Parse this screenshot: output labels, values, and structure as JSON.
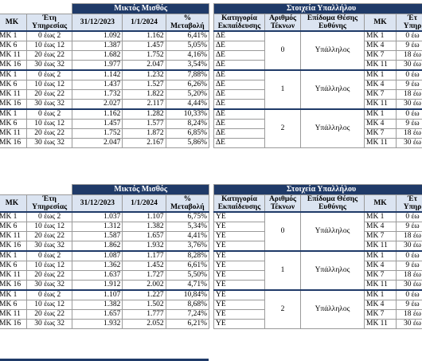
{
  "blocks": [
    {
      "salary_title": "Μικτός Μισθός",
      "staff_title": "Στοιχεία Υπαλλήλου",
      "headers": {
        "mk": "ΜΚ",
        "years": "Έτη Υπηρεσίας",
        "d1": "31/12/2023",
        "d2": "1/1/2024",
        "pct": "% Μεταβολή",
        "edu": "Κατηγορία Εκπαίδευσης",
        "kids": "Αριθμός Τέκνων",
        "allow": "Επίδομα Θέσης Ευθύνης",
        "mk2": "ΜΚ",
        "years2": "Έτ Υπηρ"
      },
      "groups": [
        {
          "kids": "0",
          "allow": "Υπάλληλος",
          "rows": [
            {
              "mk": "ΜΚ 1",
              "years": "0 έως 2",
              "v1": "1.092",
              "v2": "1.162",
              "pct": "6,41%",
              "edu": "ΔΕ",
              "mk2": "ΜΚ 1",
              "y2": "0 έω"
            },
            {
              "mk": "ΜΚ 6",
              "years": "10 έως 12",
              "v1": "1.387",
              "v2": "1.457",
              "pct": "5,05%",
              "edu": "ΔΕ",
              "mk2": "ΜΚ 4",
              "y2": "9 έω"
            },
            {
              "mk": "ΜΚ 11",
              "years": "20 έως 22",
              "v1": "1.682",
              "v2": "1.752",
              "pct": "4,16%",
              "edu": "ΔΕ",
              "mk2": "ΜΚ 7",
              "y2": "18 έω"
            },
            {
              "mk": "ΜΚ 16",
              "years": "30 έως 32",
              "v1": "1.977",
              "v2": "2.047",
              "pct": "3,54%",
              "edu": "ΔΕ",
              "mk2": "ΜΚ 11",
              "y2": "30 έω"
            }
          ]
        },
        {
          "kids": "1",
          "allow": "Υπάλληλος",
          "rows": [
            {
              "mk": "ΜΚ 1",
              "years": "0 έως 2",
              "v1": "1.142",
              "v2": "1.232",
              "pct": "7,88%",
              "edu": "ΔΕ",
              "mk2": "ΜΚ 1",
              "y2": "0 έω"
            },
            {
              "mk": "ΜΚ 6",
              "years": "10 έως 12",
              "v1": "1.437",
              "v2": "1.527",
              "pct": "6,26%",
              "edu": "ΔΕ",
              "mk2": "ΜΚ 4",
              "y2": "9 έω"
            },
            {
              "mk": "ΜΚ 11",
              "years": "20 έως 22",
              "v1": "1.732",
              "v2": "1.822",
              "pct": "5,20%",
              "edu": "ΔΕ",
              "mk2": "ΜΚ 7",
              "y2": "18 έω"
            },
            {
              "mk": "ΜΚ 16",
              "years": "30 έως 32",
              "v1": "2.027",
              "v2": "2.117",
              "pct": "4,44%",
              "edu": "ΔΕ",
              "mk2": "ΜΚ 11",
              "y2": "30 έω"
            }
          ]
        },
        {
          "kids": "2",
          "allow": "Υπάλληλος",
          "rows": [
            {
              "mk": "ΜΚ 1",
              "years": "0 έως 2",
              "v1": "1.162",
              "v2": "1.282",
              "pct": "10,33%",
              "edu": "ΔΕ",
              "mk2": "ΜΚ 1",
              "y2": "0 έω"
            },
            {
              "mk": "ΜΚ 6",
              "years": "10 έως 12",
              "v1": "1.457",
              "v2": "1.577",
              "pct": "8,24%",
              "edu": "ΔΕ",
              "mk2": "ΜΚ 4",
              "y2": "9 έω"
            },
            {
              "mk": "ΜΚ 11",
              "years": "20 έως 22",
              "v1": "1.752",
              "v2": "1.872",
              "pct": "6,85%",
              "edu": "ΔΕ",
              "mk2": "ΜΚ 7",
              "y2": "18 έω"
            },
            {
              "mk": "ΜΚ 16",
              "years": "30 έως 32",
              "v1": "2.047",
              "v2": "2.167",
              "pct": "5,86%",
              "edu": "ΔΕ",
              "mk2": "ΜΚ 11",
              "y2": "30 έω"
            }
          ]
        }
      ]
    },
    {
      "salary_title": "Μικτός Μισθός",
      "staff_title": "Στοιχεία Υπαλλήλου",
      "headers": {
        "mk": "ΜΚ",
        "years": "Έτη Υπηρεσίας",
        "d1": "31/12/2023",
        "d2": "1/1/2024",
        "pct": "% Μεταβολή",
        "edu": "Κατηγορία Εκπαίδευσης",
        "kids": "Αριθμός Τέκνων",
        "allow": "Επίδομα Θέσης Ευθύνης",
        "mk2": "ΜΚ",
        "years2": "Έτ Υπηρ"
      },
      "groups": [
        {
          "kids": "0",
          "allow": "Υπάλληλος",
          "rows": [
            {
              "mk": "ΜΚ 1",
              "years": "0 έως 2",
              "v1": "1.037",
              "v2": "1.107",
              "pct": "6,75%",
              "edu": "ΥΕ",
              "mk2": "ΜΚ 1",
              "y2": "0 έω"
            },
            {
              "mk": "ΜΚ 6",
              "years": "10 έως 12",
              "v1": "1.312",
              "v2": "1.382",
              "pct": "5,34%",
              "edu": "ΥΕ",
              "mk2": "ΜΚ 4",
              "y2": "9 έω"
            },
            {
              "mk": "ΜΚ 11",
              "years": "20 έως 22",
              "v1": "1.587",
              "v2": "1.657",
              "pct": "4,41%",
              "edu": "ΥΕ",
              "mk2": "ΜΚ 7",
              "y2": "18 έω"
            },
            {
              "mk": "ΜΚ 16",
              "years": "30 έως 32",
              "v1": "1.862",
              "v2": "1.932",
              "pct": "3,76%",
              "edu": "ΥΕ",
              "mk2": "ΜΚ 11",
              "y2": "30 έω"
            }
          ]
        },
        {
          "kids": "1",
          "allow": "Υπάλληλος",
          "rows": [
            {
              "mk": "ΜΚ 1",
              "years": "0 έως 2",
              "v1": "1.087",
              "v2": "1.177",
              "pct": "8,28%",
              "edu": "ΥΕ",
              "mk2": "ΜΚ 1",
              "y2": "0 έω"
            },
            {
              "mk": "ΜΚ 6",
              "years": "10 έως 12",
              "v1": "1.362",
              "v2": "1.452",
              "pct": "6,61%",
              "edu": "ΥΕ",
              "mk2": "ΜΚ 4",
              "y2": "9 έω"
            },
            {
              "mk": "ΜΚ 11",
              "years": "20 έως 22",
              "v1": "1.637",
              "v2": "1.727",
              "pct": "5,50%",
              "edu": "ΥΕ",
              "mk2": "ΜΚ 7",
              "y2": "18 έω"
            },
            {
              "mk": "ΜΚ 16",
              "years": "30 έως 32",
              "v1": "1.912",
              "v2": "2.002",
              "pct": "4,71%",
              "edu": "ΥΕ",
              "mk2": "ΜΚ 11",
              "y2": "30 έω"
            }
          ]
        },
        {
          "kids": "2",
          "allow": "Υπάλληλος",
          "rows": [
            {
              "mk": "ΜΚ 1",
              "years": "0 έως 2",
              "v1": "1.107",
              "v2": "1.227",
              "pct": "10,84%",
              "edu": "ΥΕ",
              "mk2": "ΜΚ 1",
              "y2": "0 έω"
            },
            {
              "mk": "ΜΚ 6",
              "years": "10 έως 12",
              "v1": "1.382",
              "v2": "1.502",
              "pct": "8,68%",
              "edu": "ΥΕ",
              "mk2": "ΜΚ 4",
              "y2": "9 έω"
            },
            {
              "mk": "ΜΚ 11",
              "years": "20 έως 22",
              "v1": "1.657",
              "v2": "1.777",
              "pct": "7,24%",
              "edu": "ΥΕ",
              "mk2": "ΜΚ 7",
              "y2": "18 έω"
            },
            {
              "mk": "ΜΚ 16",
              "years": "30 έως 32",
              "v1": "1.932",
              "v2": "2.052",
              "pct": "6,21%",
              "edu": "ΥΕ",
              "mk2": "ΜΚ 11",
              "y2": "30 έω"
            }
          ]
        }
      ]
    }
  ],
  "colors": {
    "header_navy": "#1f3a68",
    "header_light": "#dbe4f1"
  }
}
